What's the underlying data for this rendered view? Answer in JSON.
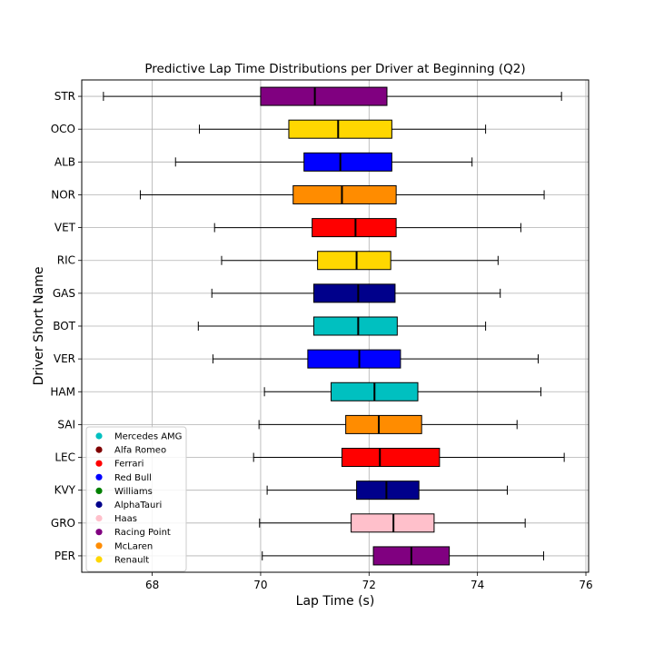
{
  "chart_data": {
    "type": "boxplot-horizontal",
    "title": "Predictive Lap Time Distributions per Driver at Beginning (Q2)",
    "xlabel": "Lap Time (s)",
    "ylabel": "Driver Short Name",
    "xlim": [
      66.7,
      76.05
    ],
    "x_ticks": [
      "68",
      "70",
      "72",
      "74",
      "76"
    ],
    "grid": true,
    "legend_position": "lower-left",
    "legend": [
      {
        "label": "Mercedes AMG",
        "color": "#00c0c0"
      },
      {
        "label": "Alfa Romeo",
        "color": "#800000"
      },
      {
        "label": "Ferrari",
        "color": "#ff0000"
      },
      {
        "label": "Red Bull",
        "color": "#0000ff"
      },
      {
        "label": "Williams",
        "color": "#008000"
      },
      {
        "label": "AlphaTauri",
        "color": "#00008b"
      },
      {
        "label": "Haas",
        "color": "#ffc0cb"
      },
      {
        "label": "Racing Point",
        "color": "#800080"
      },
      {
        "label": "McLaren",
        "color": "#ff8c00"
      },
      {
        "label": "Renault",
        "color": "#ffd700"
      }
    ],
    "boxes": [
      {
        "driver": "STR",
        "team": "Racing Point",
        "color": "#800080",
        "whisker_low": 67.1,
        "q1": 70.0,
        "median": 71.0,
        "q3": 72.33,
        "whisker_high": 75.55
      },
      {
        "driver": "OCO",
        "team": "Renault",
        "color": "#ffd700",
        "whisker_low": 68.87,
        "q1": 70.52,
        "median": 71.43,
        "q3": 72.42,
        "whisker_high": 74.15
      },
      {
        "driver": "ALB",
        "team": "Red Bull",
        "color": "#0000ff",
        "whisker_low": 68.43,
        "q1": 70.8,
        "median": 71.47,
        "q3": 72.42,
        "whisker_high": 73.9
      },
      {
        "driver": "NOR",
        "team": "McLaren",
        "color": "#ff8c00",
        "whisker_low": 67.78,
        "q1": 70.6,
        "median": 71.5,
        "q3": 72.5,
        "whisker_high": 75.23
      },
      {
        "driver": "VET",
        "team": "Ferrari",
        "color": "#ff0000",
        "whisker_low": 69.15,
        "q1": 70.95,
        "median": 71.75,
        "q3": 72.5,
        "whisker_high": 74.8
      },
      {
        "driver": "RIC",
        "team": "Renault",
        "color": "#ffd700",
        "whisker_low": 69.28,
        "q1": 71.05,
        "median": 71.77,
        "q3": 72.4,
        "whisker_high": 74.38
      },
      {
        "driver": "GAS",
        "team": "AlphaTauri",
        "color": "#00008b",
        "whisker_low": 69.1,
        "q1": 70.98,
        "median": 71.8,
        "q3": 72.48,
        "whisker_high": 74.42
      },
      {
        "driver": "BOT",
        "team": "Mercedes AMG",
        "color": "#00c0c0",
        "whisker_low": 68.85,
        "q1": 70.98,
        "median": 71.8,
        "q3": 72.52,
        "whisker_high": 74.15
      },
      {
        "driver": "VER",
        "team": "Red Bull",
        "color": "#0000ff",
        "whisker_low": 69.12,
        "q1": 70.87,
        "median": 71.82,
        "q3": 72.58,
        "whisker_high": 75.12
      },
      {
        "driver": "HAM",
        "team": "Mercedes AMG",
        "color": "#00c0c0",
        "whisker_low": 70.07,
        "q1": 71.3,
        "median": 72.1,
        "q3": 72.9,
        "whisker_high": 75.17
      },
      {
        "driver": "SAI",
        "team": "McLaren",
        "color": "#ff8c00",
        "whisker_low": 69.97,
        "q1": 71.57,
        "median": 72.18,
        "q3": 72.97,
        "whisker_high": 74.73
      },
      {
        "driver": "LEC",
        "team": "Ferrari",
        "color": "#ff0000",
        "whisker_low": 69.87,
        "q1": 71.5,
        "median": 72.2,
        "q3": 73.3,
        "whisker_high": 75.6
      },
      {
        "driver": "KVY",
        "team": "AlphaTauri",
        "color": "#00008b",
        "whisker_low": 70.12,
        "q1": 71.77,
        "median": 72.32,
        "q3": 72.92,
        "whisker_high": 74.55
      },
      {
        "driver": "GRO",
        "team": "Haas",
        "color": "#ffc0cb",
        "whisker_low": 69.98,
        "q1": 71.67,
        "median": 72.45,
        "q3": 73.2,
        "whisker_high": 74.88
      },
      {
        "driver": "PER",
        "team": "Racing Point",
        "color": "#800080",
        "whisker_low": 70.03,
        "q1": 72.08,
        "median": 72.78,
        "q3": 73.48,
        "whisker_high": 75.22
      }
    ]
  }
}
